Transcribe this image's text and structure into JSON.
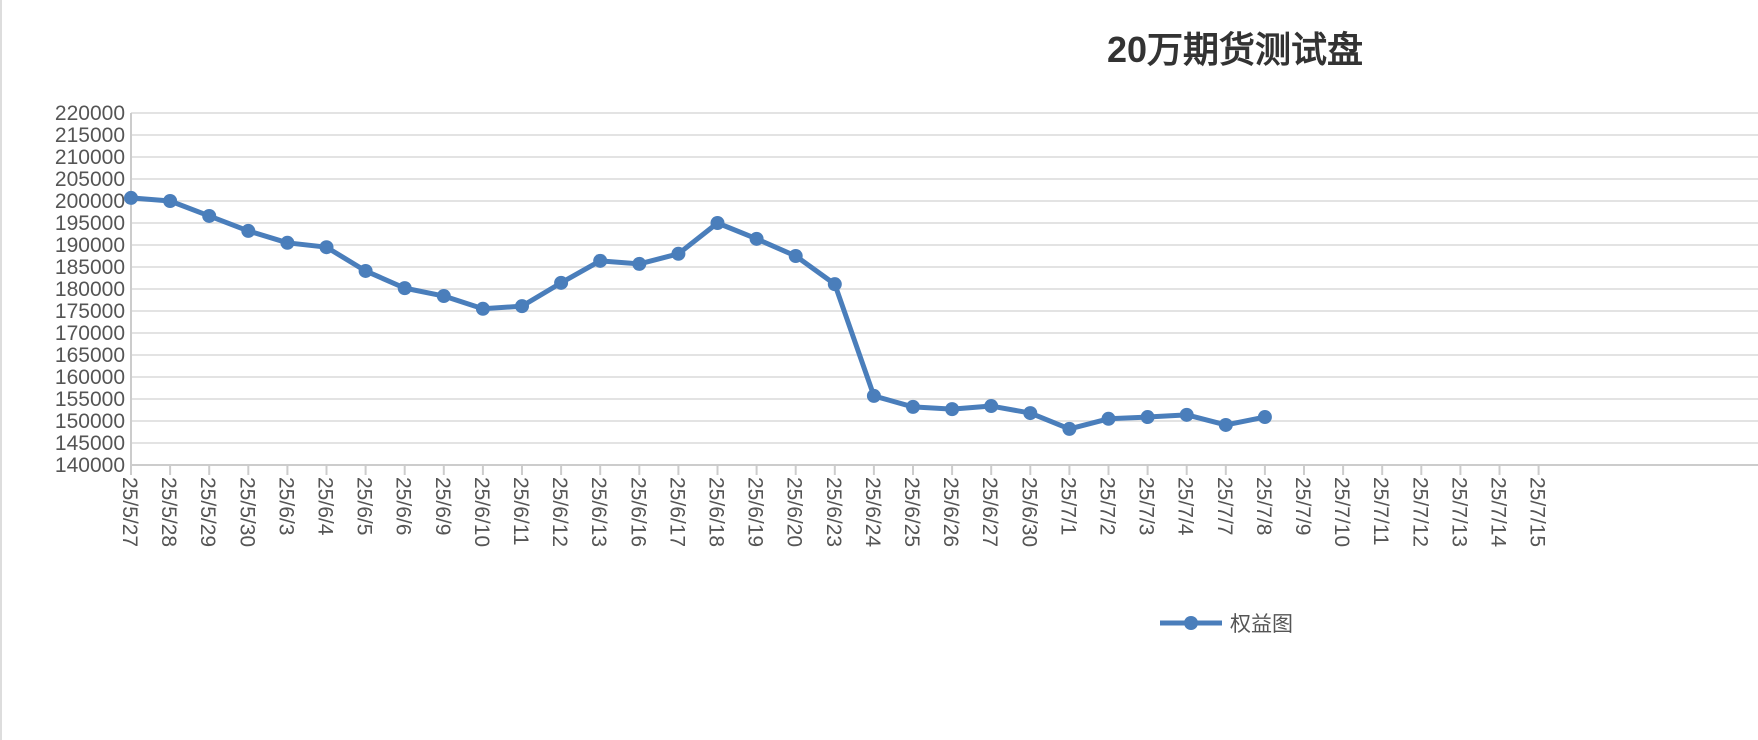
{
  "chart_data": {
    "type": "line",
    "title": "20万期货测试盘",
    "categories": [
      "25/5/27",
      "25/5/28",
      "25/5/29",
      "25/5/30",
      "25/6/3",
      "25/6/4",
      "25/6/5",
      "25/6/6",
      "25/6/9",
      "25/6/10",
      "25/6/11",
      "25/6/12",
      "25/6/13",
      "25/6/16",
      "25/6/17",
      "25/6/18",
      "25/6/19",
      "25/6/20",
      "25/6/23",
      "25/6/24",
      "25/6/25",
      "25/6/26",
      "25/6/27",
      "25/6/30",
      "25/7/1",
      "25/7/2",
      "25/7/3",
      "25/7/4",
      "25/7/7",
      "25/7/8",
      "25/7/9",
      "25/7/10",
      "25/7/11",
      "25/7/12",
      "25/7/13",
      "25/7/14",
      "25/7/15"
    ],
    "series": [
      {
        "name": "权益图",
        "color": "#4a7ebb",
        "values": [
          200700,
          200000,
          196600,
          193200,
          190500,
          189500,
          184100,
          180200,
          178400,
          175500,
          176100,
          181400,
          186400,
          185700,
          188000,
          195000,
          191400,
          187500,
          181100,
          155700,
          153200,
          152700,
          153400,
          151800,
          148200,
          150500,
          150900,
          151400,
          149100,
          150900,
          null,
          null,
          null,
          null,
          null,
          null,
          null
        ]
      }
    ],
    "ylim": [
      140000,
      220000
    ],
    "yticks": [
      140000,
      145000,
      150000,
      155000,
      160000,
      165000,
      170000,
      175000,
      180000,
      185000,
      190000,
      195000,
      200000,
      205000,
      210000,
      215000,
      220000
    ],
    "grid": true,
    "legend": "bottom"
  }
}
